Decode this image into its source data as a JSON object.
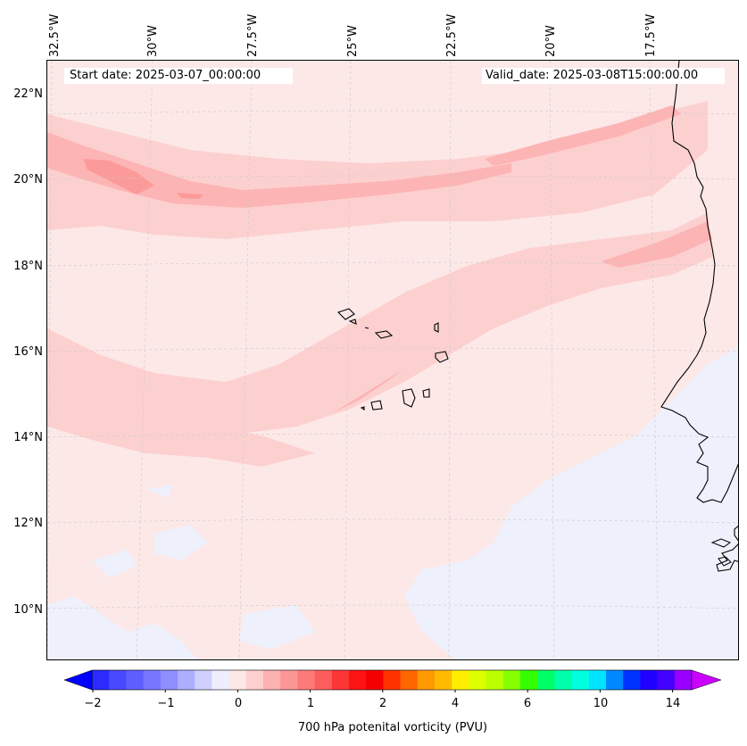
{
  "header": {
    "start_date": "Start date: 2025-03-07_00:00:00",
    "valid_date": "Valid_date: 2025-03-08T15:00:00.00"
  },
  "map": {
    "lon_ticks": [
      "32.5°W",
      "30°W",
      "27.5°W",
      "25°W",
      "22.5°W",
      "20°W",
      "17.5°W"
    ],
    "lat_ticks": [
      "22°N",
      "20°N",
      "18°N",
      "16°N",
      "14°N",
      "12°N",
      "10°N"
    ],
    "field_colors": {
      "lightest_pink": "#fde8e8",
      "light_pink": "#fdd0d0",
      "medium_pink": "#fdb4b4",
      "dark_pink": "#fc9a9a",
      "pale_blue": "#eef0fb"
    }
  },
  "colorbar": {
    "title": "700 hPa potenital vorticity (PVU)",
    "tick_labels": [
      "−2",
      "−1",
      "0",
      "1",
      "2",
      "4",
      "6",
      "10",
      "14"
    ],
    "colors": [
      "#2b2bff",
      "#4848ff",
      "#5e5eff",
      "#7676ff",
      "#8e8eff",
      "#aeaeff",
      "#d0d0ff",
      "#eeeefe",
      "#fde8e8",
      "#fdcfcf",
      "#fcb2b2",
      "#fc9696",
      "#fc7a7a",
      "#fc5e5e",
      "#fc3636",
      "#fc1313",
      "#f40000",
      "#ff3300",
      "#ff6600",
      "#ff9900",
      "#ffbb00",
      "#ffee00",
      "#ddff00",
      "#bbff00",
      "#88ff00",
      "#33ff00",
      "#00ff66",
      "#00ffaa",
      "#00ffdd",
      "#00e4ff",
      "#0088ff",
      "#0033ff",
      "#2200ff",
      "#4400ff",
      "#9900ff"
    ],
    "under_color": "#0000ff",
    "over_color": "#cc00ff"
  }
}
